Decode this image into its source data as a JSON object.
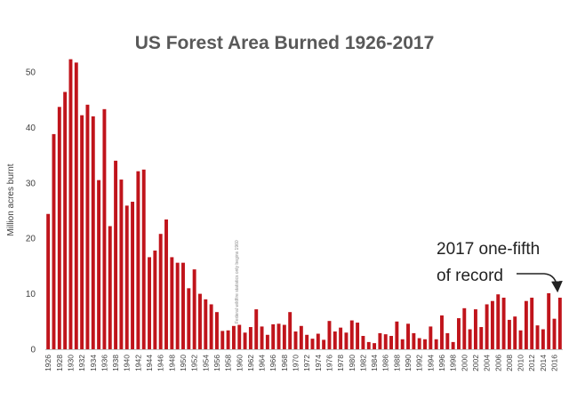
{
  "chart_data": {
    "type": "bar",
    "title": "US Forest Area Burned 1926-2017",
    "ylabel": "Million acres burnt",
    "xlabel": "",
    "ylim": [
      0,
      55
    ],
    "yticks": [
      0,
      10,
      20,
      30,
      40,
      50
    ],
    "grid": false,
    "legend": "none",
    "bar_color": "#C0141B",
    "categories": [
      1926,
      1927,
      1928,
      1929,
      1930,
      1931,
      1932,
      1933,
      1934,
      1935,
      1936,
      1937,
      1938,
      1939,
      1940,
      1941,
      1942,
      1943,
      1944,
      1945,
      1946,
      1947,
      1948,
      1949,
      1950,
      1951,
      1952,
      1953,
      1954,
      1955,
      1956,
      1957,
      1958,
      1959,
      1960,
      1961,
      1962,
      1963,
      1964,
      1965,
      1966,
      1967,
      1968,
      1969,
      1970,
      1971,
      1972,
      1973,
      1974,
      1975,
      1976,
      1977,
      1978,
      1979,
      1980,
      1981,
      1982,
      1983,
      1984,
      1985,
      1986,
      1987,
      1988,
      1989,
      1990,
      1991,
      1992,
      1993,
      1994,
      1995,
      1996,
      1997,
      1998,
      1999,
      2000,
      2001,
      2002,
      2003,
      2004,
      2005,
      2006,
      2007,
      2008,
      2009,
      2010,
      2011,
      2012,
      2013,
      2014,
      2015,
      2016,
      2017
    ],
    "xtick_labels": [
      "1926",
      "1928",
      "1930",
      "1932",
      "1934",
      "1936",
      "1938",
      "1940",
      "1942",
      "1944",
      "1946",
      "1948",
      "1950",
      "1952",
      "1954",
      "1956",
      "1958",
      "1960",
      "1962",
      "1964",
      "1966",
      "1968",
      "1970",
      "1972",
      "1974",
      "1976",
      "1978",
      "1980",
      "1982",
      "1984",
      "1986",
      "1988",
      "1990",
      "1992",
      "1994",
      "1996",
      "1998",
      "2000",
      "2002",
      "2004",
      "2006",
      "2008",
      "2010",
      "2012",
      "2014",
      "2016"
    ],
    "values": [
      24.4,
      38.8,
      43.7,
      46.4,
      52.3,
      51.7,
      42.2,
      44.1,
      42.0,
      30.5,
      43.3,
      22.2,
      34.0,
      30.6,
      25.9,
      26.6,
      32.1,
      32.4,
      16.6,
      17.8,
      20.8,
      23.4,
      16.6,
      15.6,
      15.6,
      11.0,
      14.4,
      10.0,
      9.0,
      8.1,
      6.7,
      3.3,
      3.4,
      4.2,
      4.4,
      3.0,
      4.0,
      7.2,
      4.1,
      2.6,
      4.5,
      4.6,
      4.4,
      6.7,
      3.2,
      4.2,
      2.6,
      1.9,
      2.8,
      1.7,
      5.1,
      3.2,
      3.9,
      3.0,
      5.2,
      4.8,
      2.4,
      1.3,
      1.1,
      2.9,
      2.7,
      2.4,
      5.0,
      1.8,
      4.6,
      2.9,
      2.0,
      1.8,
      4.1,
      1.8,
      6.1,
      2.9,
      1.3,
      5.6,
      7.4,
      3.6,
      7.2,
      4.0,
      8.1,
      8.7,
      9.9,
      9.3,
      5.3,
      5.9,
      3.4,
      8.7,
      9.3,
      4.3,
      3.6,
      10.1,
      5.5,
      9.3
    ],
    "annotation": {
      "line1": "2017 one-fifth",
      "line2": "of record"
    },
    "note": "Federal wildfire statistics only begins 1960"
  }
}
